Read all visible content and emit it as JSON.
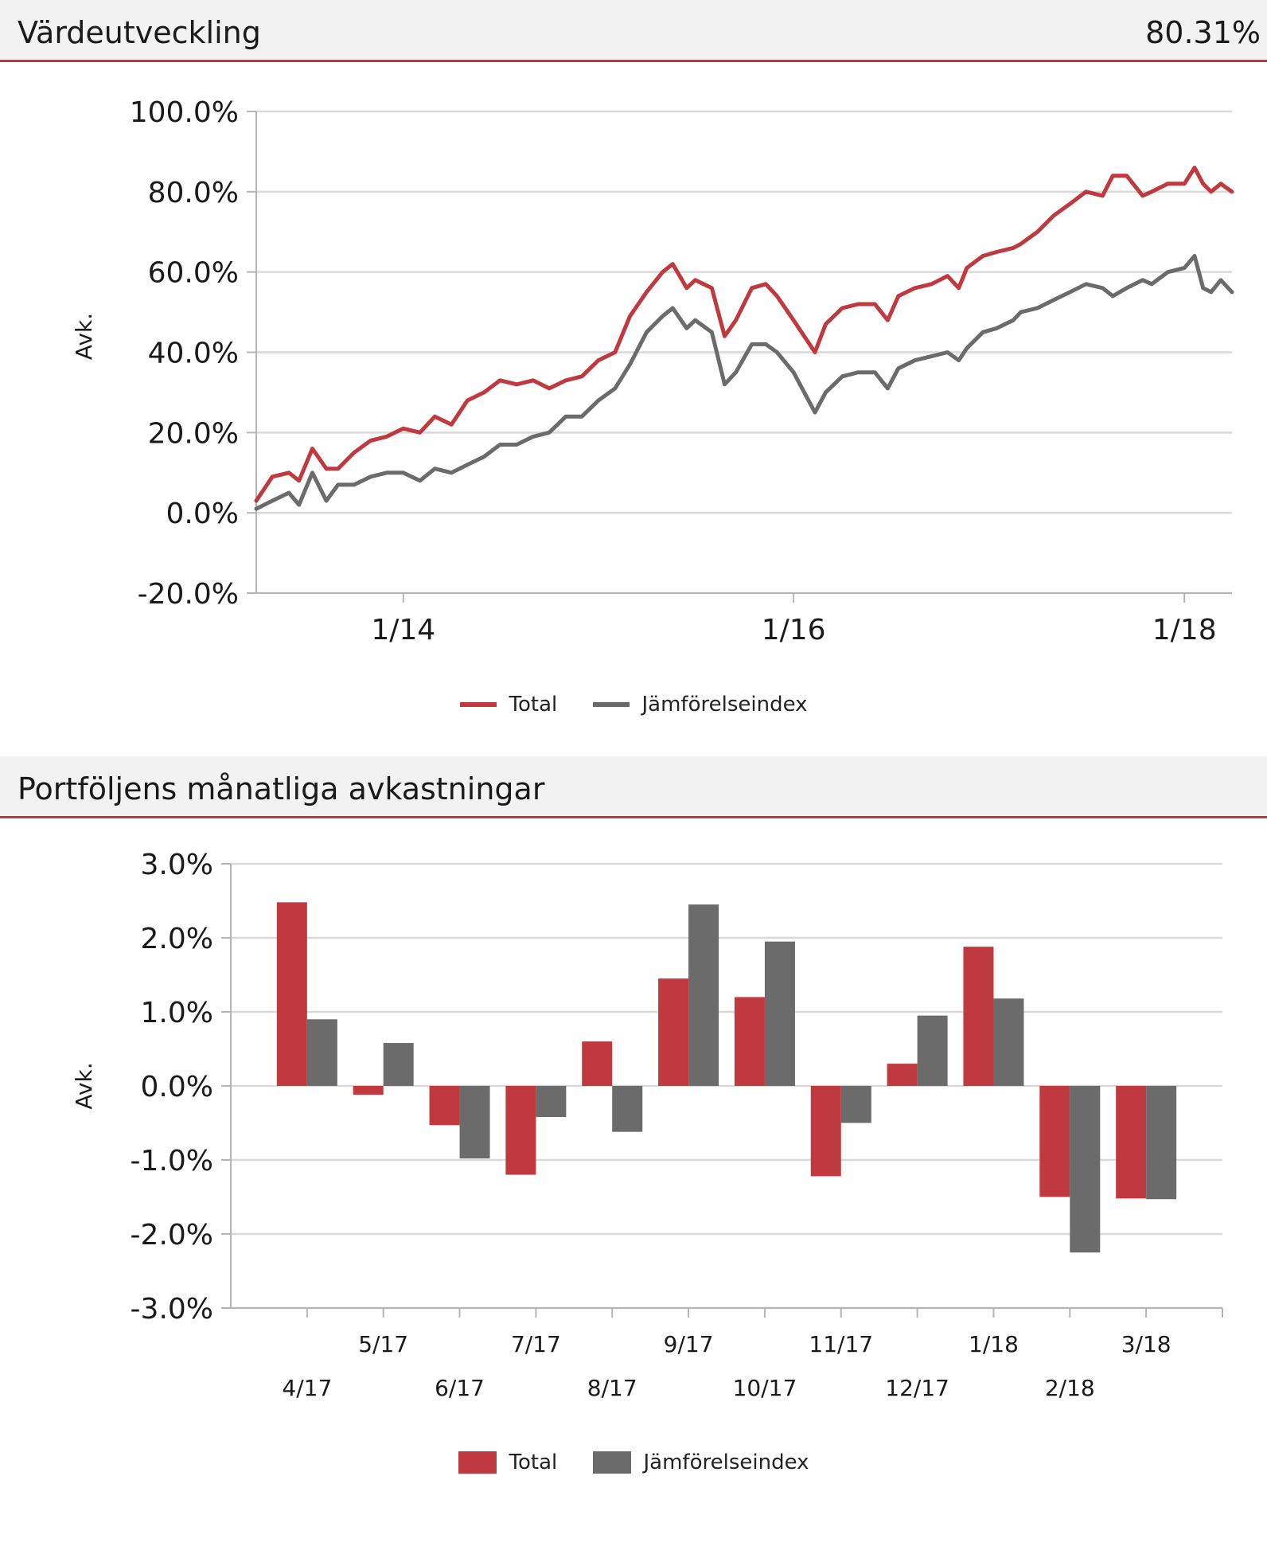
{
  "section1": {
    "title": "Värdeutveckling",
    "value": "80.31%"
  },
  "section2": {
    "title": "Portföljens månatliga avkastningar"
  },
  "colors": {
    "total": "#c0393f",
    "index": "#6b6b6b",
    "accent": "#c0392b",
    "grid": "#d9d9d9"
  },
  "legend": {
    "total": "Total",
    "index": "Jämförelseindex"
  },
  "chart_data": [
    {
      "type": "line",
      "title": "Värdeutveckling",
      "ylabel": "Avk.",
      "xlabel": "",
      "ylim": [
        -20,
        100
      ],
      "yticks": [
        "100.0%",
        "80.0%",
        "60.0%",
        "40.0%",
        "20.0%",
        "0.0%",
        "-20.0%"
      ],
      "ytick_values": [
        100,
        80,
        60,
        40,
        20,
        0,
        -20
      ],
      "xlim": [
        "2013-04-01",
        "2018-03-31"
      ],
      "xticks": [
        {
          "label": "1/14",
          "date": "2014-01-01"
        },
        {
          "label": "1/16",
          "date": "2016-01-01"
        },
        {
          "label": "1/18",
          "date": "2018-01-01"
        }
      ],
      "grid": true,
      "legend": "bottom-center",
      "series": [
        {
          "name": "Total",
          "points": [
            [
              "2013-04-01",
              3
            ],
            [
              "2013-05-01",
              9
            ],
            [
              "2013-06-01",
              10
            ],
            [
              "2013-06-20",
              8
            ],
            [
              "2013-07-15",
              16
            ],
            [
              "2013-08-10",
              11
            ],
            [
              "2013-09-01",
              11
            ],
            [
              "2013-10-01",
              15
            ],
            [
              "2013-11-01",
              18
            ],
            [
              "2013-12-01",
              19
            ],
            [
              "2014-01-01",
              21
            ],
            [
              "2014-02-01",
              20
            ],
            [
              "2014-03-01",
              24
            ],
            [
              "2014-04-01",
              22
            ],
            [
              "2014-05-01",
              28
            ],
            [
              "2014-06-01",
              30
            ],
            [
              "2014-07-01",
              33
            ],
            [
              "2014-08-01",
              32
            ],
            [
              "2014-09-01",
              33
            ],
            [
              "2014-10-01",
              31
            ],
            [
              "2014-11-01",
              33
            ],
            [
              "2014-12-01",
              34
            ],
            [
              "2015-01-01",
              38
            ],
            [
              "2015-02-01",
              40
            ],
            [
              "2015-03-01",
              49
            ],
            [
              "2015-04-01",
              55
            ],
            [
              "2015-05-01",
              60
            ],
            [
              "2015-05-20",
              62
            ],
            [
              "2015-06-15",
              56
            ],
            [
              "2015-07-01",
              58
            ],
            [
              "2015-08-01",
              56
            ],
            [
              "2015-08-25",
              44
            ],
            [
              "2015-09-15",
              48
            ],
            [
              "2015-10-15",
              56
            ],
            [
              "2015-11-10",
              57
            ],
            [
              "2015-12-01",
              54
            ],
            [
              "2016-01-01",
              48
            ],
            [
              "2016-02-10",
              40
            ],
            [
              "2016-03-01",
              47
            ],
            [
              "2016-04-01",
              51
            ],
            [
              "2016-05-01",
              52
            ],
            [
              "2016-06-01",
              52
            ],
            [
              "2016-06-25",
              48
            ],
            [
              "2016-07-15",
              54
            ],
            [
              "2016-08-15",
              56
            ],
            [
              "2016-09-15",
              57
            ],
            [
              "2016-10-15",
              59
            ],
            [
              "2016-11-05",
              56
            ],
            [
              "2016-11-20",
              61
            ],
            [
              "2016-12-20",
              64
            ],
            [
              "2017-01-15",
              65
            ],
            [
              "2017-02-15",
              66
            ],
            [
              "2017-03-01",
              67
            ],
            [
              "2017-04-01",
              70
            ],
            [
              "2017-05-01",
              74
            ],
            [
              "2017-06-01",
              77
            ],
            [
              "2017-07-01",
              80
            ],
            [
              "2017-08-01",
              79
            ],
            [
              "2017-08-20",
              84
            ],
            [
              "2017-09-15",
              84
            ],
            [
              "2017-10-15",
              79
            ],
            [
              "2017-11-01",
              80
            ],
            [
              "2017-12-01",
              82
            ],
            [
              "2018-01-01",
              82
            ],
            [
              "2018-01-20",
              86
            ],
            [
              "2018-02-05",
              82
            ],
            [
              "2018-02-20",
              80
            ],
            [
              "2018-03-10",
              82
            ],
            [
              "2018-03-31",
              80
            ]
          ]
        },
        {
          "name": "Jämförelseindex",
          "points": [
            [
              "2013-04-01",
              1
            ],
            [
              "2013-05-01",
              3
            ],
            [
              "2013-06-01",
              5
            ],
            [
              "2013-06-20",
              2
            ],
            [
              "2013-07-15",
              10
            ],
            [
              "2013-08-10",
              3
            ],
            [
              "2013-09-01",
              7
            ],
            [
              "2013-10-01",
              7
            ],
            [
              "2013-11-01",
              9
            ],
            [
              "2013-12-01",
              10
            ],
            [
              "2014-01-01",
              10
            ],
            [
              "2014-02-01",
              8
            ],
            [
              "2014-03-01",
              11
            ],
            [
              "2014-04-01",
              10
            ],
            [
              "2014-05-01",
              12
            ],
            [
              "2014-06-01",
              14
            ],
            [
              "2014-07-01",
              17
            ],
            [
              "2014-08-01",
              17
            ],
            [
              "2014-09-01",
              19
            ],
            [
              "2014-10-01",
              20
            ],
            [
              "2014-11-01",
              24
            ],
            [
              "2014-12-01",
              24
            ],
            [
              "2015-01-01",
              28
            ],
            [
              "2015-02-01",
              31
            ],
            [
              "2015-03-01",
              37
            ],
            [
              "2015-04-01",
              45
            ],
            [
              "2015-05-01",
              49
            ],
            [
              "2015-05-20",
              51
            ],
            [
              "2015-06-15",
              46
            ],
            [
              "2015-07-01",
              48
            ],
            [
              "2015-08-01",
              45
            ],
            [
              "2015-08-25",
              32
            ],
            [
              "2015-09-15",
              35
            ],
            [
              "2015-10-15",
              42
            ],
            [
              "2015-11-10",
              42
            ],
            [
              "2015-12-01",
              40
            ],
            [
              "2016-01-01",
              35
            ],
            [
              "2016-02-10",
              25
            ],
            [
              "2016-03-01",
              30
            ],
            [
              "2016-04-01",
              34
            ],
            [
              "2016-05-01",
              35
            ],
            [
              "2016-06-01",
              35
            ],
            [
              "2016-06-25",
              31
            ],
            [
              "2016-07-15",
              36
            ],
            [
              "2016-08-15",
              38
            ],
            [
              "2016-09-15",
              39
            ],
            [
              "2016-10-15",
              40
            ],
            [
              "2016-11-05",
              38
            ],
            [
              "2016-11-20",
              41
            ],
            [
              "2016-12-20",
              45
            ],
            [
              "2017-01-15",
              46
            ],
            [
              "2017-02-15",
              48
            ],
            [
              "2017-03-01",
              50
            ],
            [
              "2017-04-01",
              51
            ],
            [
              "2017-05-01",
              53
            ],
            [
              "2017-06-01",
              55
            ],
            [
              "2017-07-01",
              57
            ],
            [
              "2017-08-01",
              56
            ],
            [
              "2017-08-20",
              54
            ],
            [
              "2017-09-15",
              56
            ],
            [
              "2017-10-15",
              58
            ],
            [
              "2017-11-01",
              57
            ],
            [
              "2017-12-01",
              60
            ],
            [
              "2018-01-01",
              61
            ],
            [
              "2018-01-20",
              64
            ],
            [
              "2018-02-05",
              56
            ],
            [
              "2018-02-20",
              55
            ],
            [
              "2018-03-10",
              58
            ],
            [
              "2018-03-31",
              55
            ]
          ]
        }
      ]
    },
    {
      "type": "bar",
      "title": "Portföljens månatliga avkastningar",
      "ylabel": "Avk.",
      "xlabel": "",
      "ylim": [
        -3,
        3
      ],
      "yticks": [
        "3.0%",
        "2.0%",
        "1.0%",
        "0.0%",
        "-1.0%",
        "-2.0%",
        "-3.0%"
      ],
      "ytick_values": [
        3,
        2,
        1,
        0,
        -1,
        -2,
        -3
      ],
      "grid": true,
      "legend": "bottom-center",
      "categories": [
        "4/17",
        "5/17",
        "6/17",
        "7/17",
        "8/17",
        "9/17",
        "10/17",
        "11/17",
        "12/17",
        "1/18",
        "2/18",
        "3/18"
      ],
      "series": [
        {
          "name": "Total",
          "values": [
            2.48,
            -0.12,
            -0.53,
            -1.2,
            0.6,
            1.45,
            1.2,
            -1.22,
            0.3,
            1.88,
            -1.5,
            -1.52
          ]
        },
        {
          "name": "Jämförelseindex",
          "values": [
            0.9,
            0.58,
            -0.98,
            -0.42,
            -0.62,
            2.45,
            1.95,
            -0.5,
            0.95,
            1.18,
            -2.25,
            -1.53
          ]
        }
      ]
    }
  ]
}
